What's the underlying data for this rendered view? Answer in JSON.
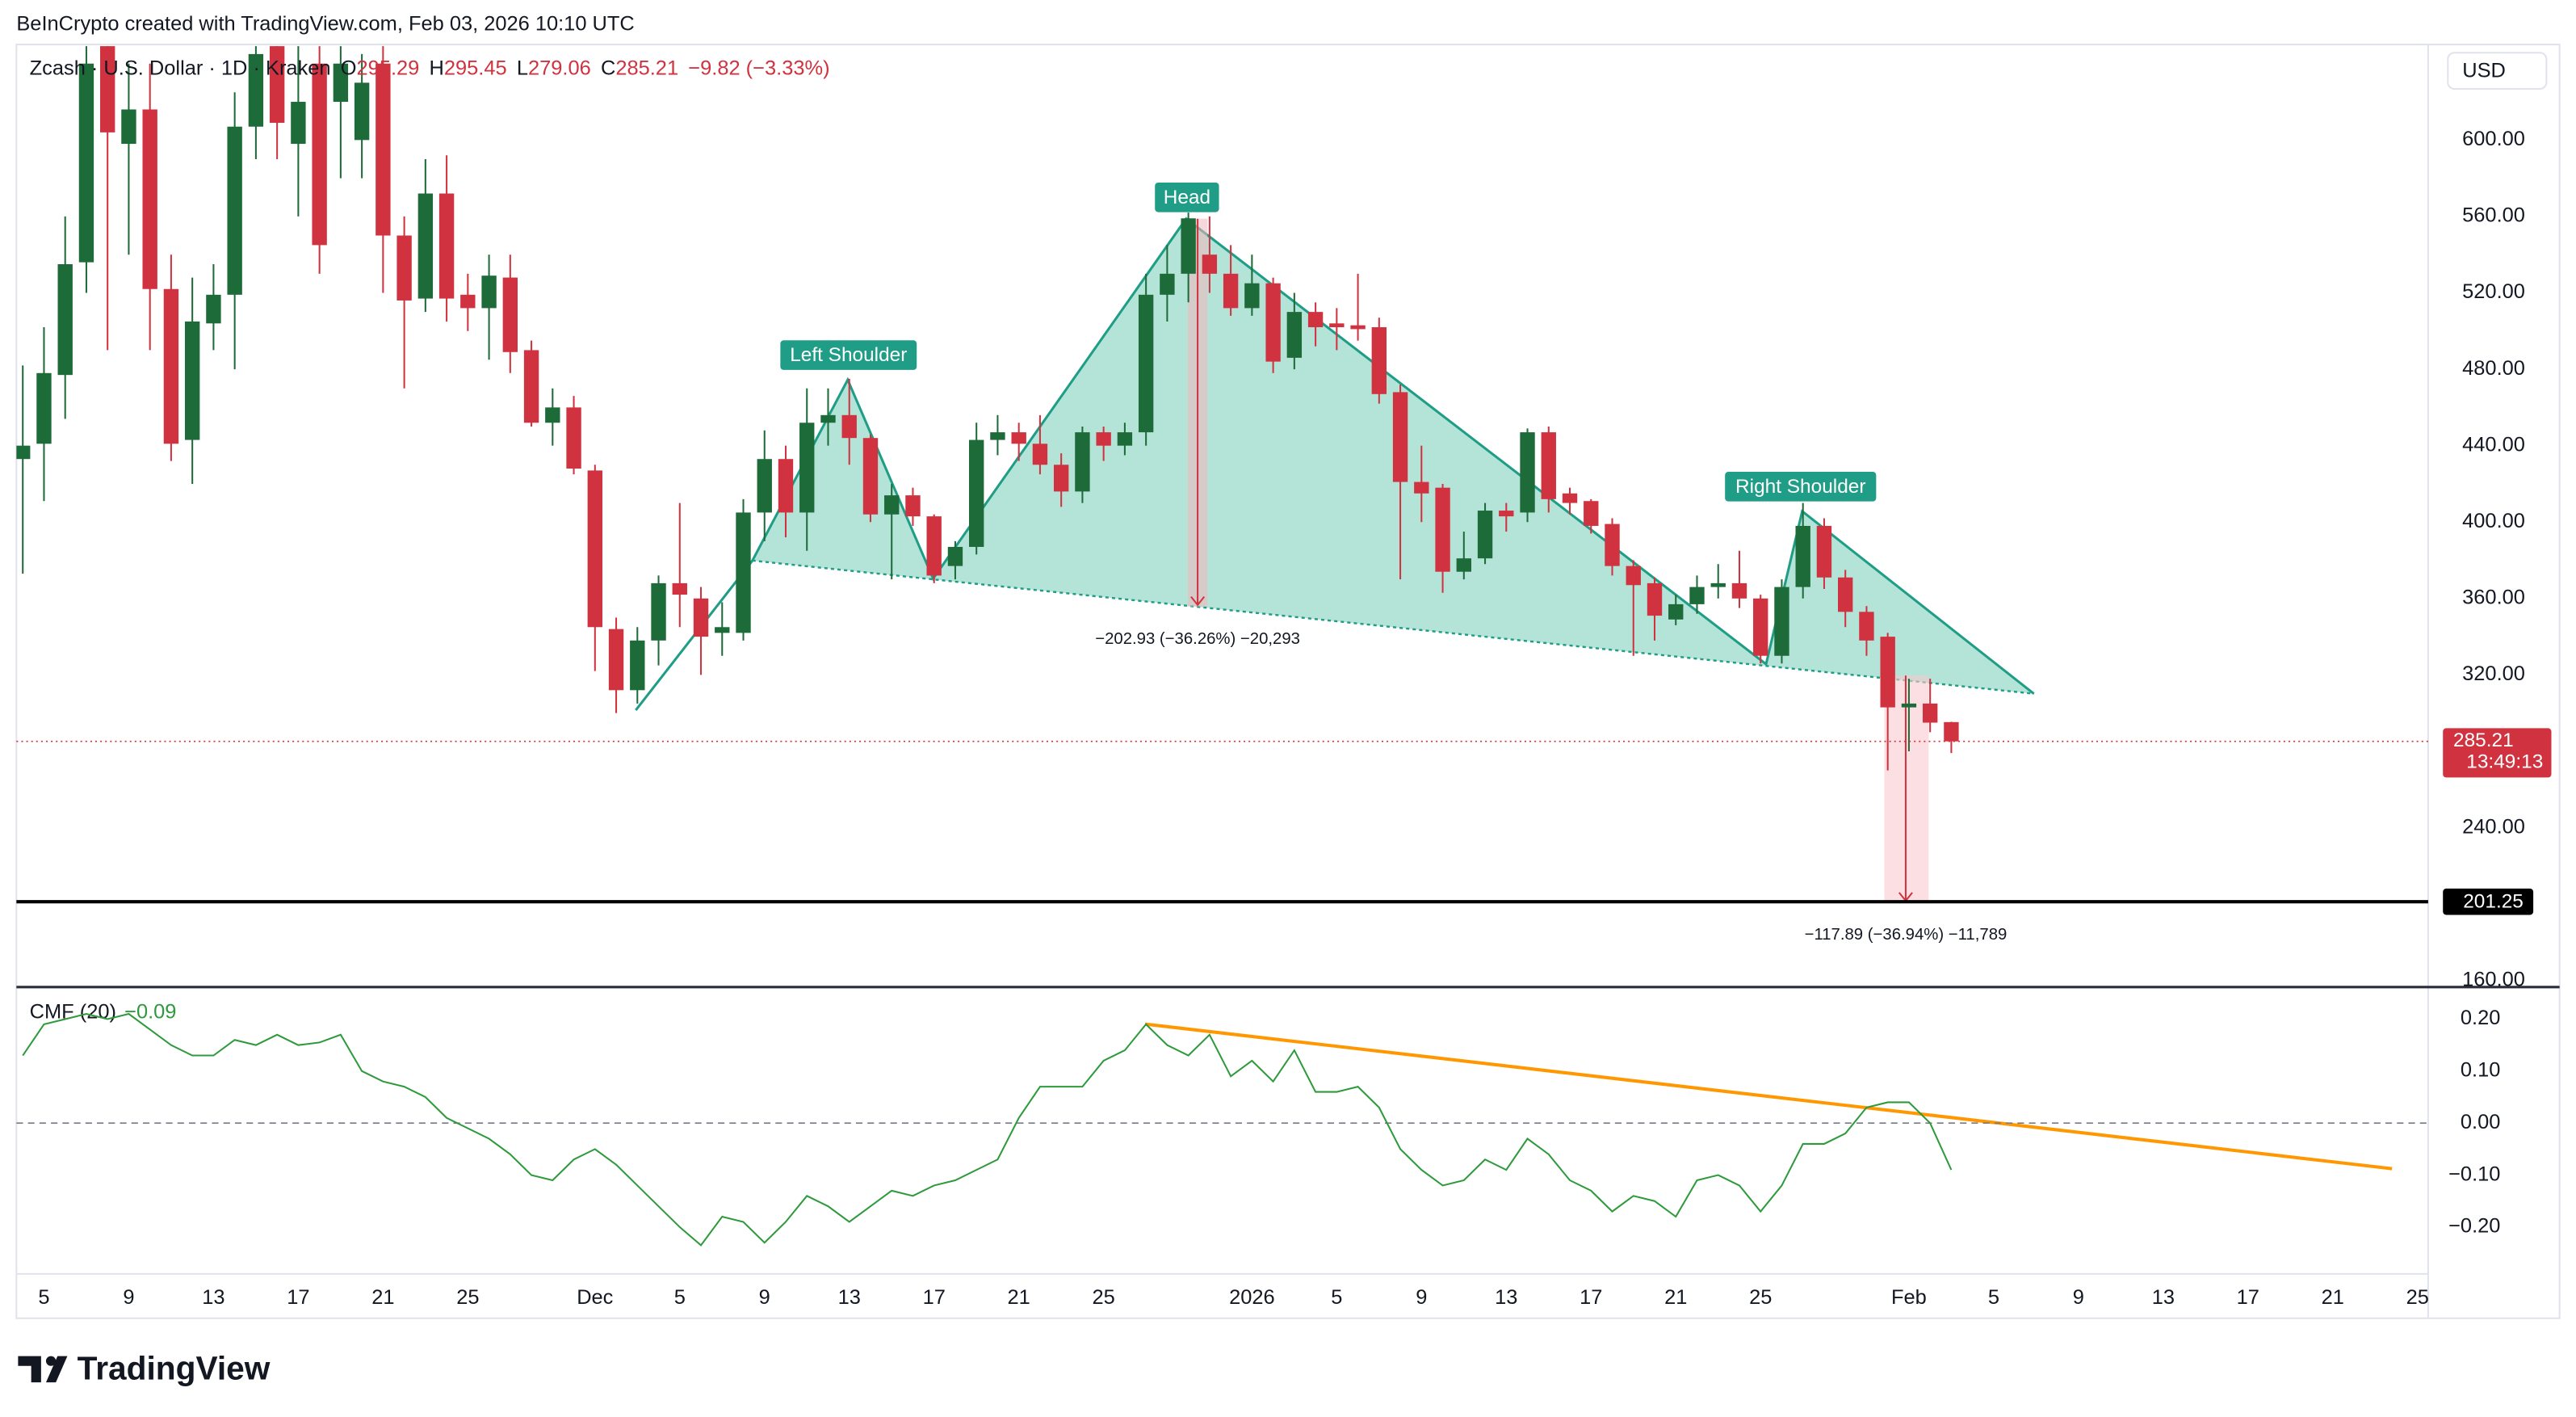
{
  "header": "BeInCrypto created with TradingView.com, Feb 03, 2026 10:10 UTC",
  "currency": "USD",
  "footer": {
    "logo": "TradingView"
  },
  "chart_data": [
    {
      "type": "candlestick",
      "legend": {
        "symbol": "Zcash · U.S. Dollar · 1D · Kraken",
        "ohlc_labels": [
          "O",
          "H",
          "L",
          "C"
        ],
        "change": "−9.82 (−3.33%)"
      },
      "annotations": {
        "left": "Left Shoulder",
        "head": "Head",
        "right": "Right Shoulder",
        "head_measure": "−202.93 (−36.26%) −20,293",
        "target_measure": "−117.89 (−36.94%) −11,789"
      },
      "up_color": "#1e6b3a",
      "down_color": "#d0323f",
      "x": [
        0,
        1,
        2,
        3,
        4,
        5,
        6,
        7,
        8,
        9,
        10,
        11,
        12,
        13,
        14,
        15,
        16,
        17,
        18,
        19,
        20,
        21,
        22,
        23,
        24,
        25,
        26,
        27,
        28,
        29,
        30,
        31,
        32,
        33,
        34,
        35,
        36,
        37,
        38,
        39,
        40,
        41,
        42,
        43,
        44,
        45,
        46,
        47,
        48,
        49,
        50,
        51,
        52,
        53,
        54,
        55,
        56,
        57,
        58,
        59,
        60,
        61,
        62,
        63,
        64,
        65,
        66,
        67,
        68,
        69,
        70,
        71,
        72,
        73,
        74,
        75,
        76,
        77,
        78,
        79,
        80,
        81,
        82,
        83,
        84,
        85,
        86,
        87,
        88,
        89,
        90,
        91
      ],
      "open": [
        433,
        441,
        477,
        536,
        650,
        598,
        616,
        522,
        443,
        504,
        519,
        607,
        650,
        598,
        640,
        620,
        600,
        640,
        550,
        517,
        572,
        519,
        512,
        528,
        490,
        452,
        460,
        427,
        344,
        312,
        338,
        368,
        360,
        342,
        342,
        405,
        433,
        405,
        452,
        456,
        444,
        404,
        414,
        403,
        377,
        387,
        443,
        447,
        441,
        430,
        416,
        447,
        440,
        447,
        519,
        530,
        540,
        530,
        512,
        525,
        486,
        510,
        504,
        503,
        502,
        468,
        421,
        418,
        374,
        381,
        406,
        405,
        447,
        415,
        411,
        399,
        377,
        368,
        349,
        357,
        366,
        368,
        360,
        330,
        366,
        398,
        371,
        353,
        340,
        303,
        305,
        295.29
      ],
      "high": [
        482,
        502,
        560,
        660,
        670,
        640,
        640,
        540,
        528,
        535,
        625,
        665,
        670,
        650,
        660,
        660,
        645,
        650,
        560,
        590,
        592,
        530,
        540,
        540,
        495,
        470,
        466,
        430,
        350,
        345,
        372,
        410,
        366,
        358,
        412,
        448,
        440,
        470,
        470,
        475,
        446,
        420,
        418,
        404,
        390,
        452,
        456,
        452,
        456,
        436,
        450,
        450,
        452,
        530,
        545,
        562,
        560,
        545,
        540,
        528,
        520,
        515,
        512,
        530,
        507,
        472,
        440,
        420,
        395,
        410,
        410,
        449,
        450,
        418,
        412,
        402,
        380,
        371,
        362,
        372,
        378,
        385,
        362,
        370,
        410,
        402,
        375,
        356,
        342,
        318,
        318,
        295.45
      ],
      "low": [
        373,
        411,
        454,
        520,
        490,
        540,
        490,
        432,
        420,
        490,
        480,
        590,
        590,
        560,
        530,
        580,
        580,
        520,
        470,
        510,
        505,
        500,
        485,
        478,
        450,
        440,
        425,
        322,
        300,
        305,
        325,
        345,
        320,
        330,
        338,
        390,
        392,
        385,
        440,
        430,
        400,
        370,
        398,
        368,
        370,
        383,
        435,
        432,
        425,
        408,
        410,
        432,
        435,
        440,
        505,
        515,
        520,
        508,
        508,
        478,
        480,
        492,
        490,
        495,
        462,
        370,
        400,
        363,
        370,
        378,
        395,
        400,
        405,
        404,
        394,
        372,
        330,
        338,
        346,
        352,
        360,
        355,
        326,
        326,
        360,
        365,
        345,
        330,
        270,
        280,
        290,
        279.06
      ],
      "close": [
        440,
        478,
        535,
        640,
        604,
        616,
        522,
        441,
        505,
        519,
        607,
        645,
        609,
        620,
        545,
        640,
        630,
        550,
        516,
        572,
        517,
        512,
        529,
        489,
        452,
        460,
        428,
        345,
        312,
        338,
        368,
        362,
        340,
        345,
        405,
        433,
        405,
        452,
        456,
        444,
        404,
        414,
        403,
        372,
        387,
        443,
        447,
        441,
        430,
        416,
        447,
        440,
        447,
        519,
        530,
        559,
        530,
        512,
        525,
        484,
        510,
        502,
        502,
        501,
        467,
        421,
        415,
        374,
        381,
        406,
        403,
        447,
        412,
        410,
        398,
        377,
        367,
        351,
        357,
        366,
        368,
        360,
        330,
        366,
        398,
        371,
        353,
        338,
        303,
        305,
        295,
        285.21
      ],
      "countdown": "13:49:13",
      "horizontal_line": 201.25,
      "xlim": [
        -0.3,
        113.5
      ],
      "ylim": [
        157,
        650
      ],
      "yticks": [
        {
          "value": 160,
          "label": "160.00"
        },
        {
          "value": 240,
          "label": "240.00"
        },
        {
          "value": 320,
          "label": "320.00"
        },
        {
          "value": 360,
          "label": "360.00"
        },
        {
          "value": 400,
          "label": "400.00"
        },
        {
          "value": 440,
          "label": "440.00"
        },
        {
          "value": 480,
          "label": "480.00"
        },
        {
          "value": 520,
          "label": "520.00"
        },
        {
          "value": 560,
          "label": "560.00"
        },
        {
          "value": 600,
          "label": "600.00"
        }
      ]
    },
    {
      "type": "line",
      "title": "CMF (20)",
      "last_label": "−0.09",
      "color": "#2e9a3c",
      "x": [
        0,
        1,
        2,
        3,
        4,
        5,
        6,
        7,
        8,
        9,
        10,
        11,
        12,
        13,
        14,
        15,
        16,
        17,
        18,
        19,
        20,
        21,
        22,
        23,
        24,
        25,
        26,
        27,
        28,
        29,
        30,
        31,
        32,
        33,
        34,
        35,
        36,
        37,
        38,
        39,
        40,
        41,
        42,
        43,
        44,
        45,
        46,
        47,
        48,
        49,
        50,
        51,
        52,
        53,
        54,
        55,
        56,
        57,
        58,
        59,
        60,
        61,
        62,
        63,
        64,
        65,
        66,
        67,
        68,
        69,
        70,
        71,
        72,
        73,
        74,
        75,
        76,
        77,
        78,
        79,
        80,
        81,
        82,
        83,
        84,
        85,
        86,
        87,
        88,
        89,
        90,
        91
      ],
      "values": [
        0.13,
        0.19,
        0.2,
        0.21,
        0.2,
        0.21,
        0.18,
        0.15,
        0.13,
        0.13,
        0.16,
        0.15,
        0.17,
        0.15,
        0.155,
        0.17,
        0.1,
        0.08,
        0.07,
        0.05,
        0.01,
        -0.01,
        -0.03,
        -0.06,
        -0.1,
        -0.11,
        -0.07,
        -0.05,
        -0.08,
        -0.12,
        -0.16,
        -0.2,
        -0.235,
        -0.18,
        -0.19,
        -0.23,
        -0.19,
        -0.14,
        -0.16,
        -0.19,
        -0.16,
        -0.13,
        -0.14,
        -0.12,
        -0.11,
        -0.09,
        -0.07,
        0.01,
        0.07,
        0.07,
        0.07,
        0.12,
        0.14,
        0.19,
        0.15,
        0.13,
        0.17,
        0.09,
        0.12,
        0.08,
        0.14,
        0.06,
        0.06,
        0.07,
        0.03,
        -0.05,
        -0.09,
        -0.12,
        -0.11,
        -0.07,
        -0.09,
        -0.03,
        -0.06,
        -0.11,
        -0.13,
        -0.17,
        -0.14,
        -0.15,
        -0.18,
        -0.11,
        -0.1,
        -0.12,
        -0.17,
        -0.12,
        -0.04,
        -0.04,
        -0.02,
        0.03,
        0.04,
        0.04,
        0.0,
        -0.09
      ],
      "xlim": [
        -0.3,
        113.5
      ],
      "ylim": [
        -0.29,
        0.26
      ],
      "yticks": [
        {
          "value": -0.2,
          "label": "−0.20"
        },
        {
          "value": -0.1,
          "label": "−0.10"
        },
        {
          "value": 0,
          "label": "0.00"
        },
        {
          "value": 0.1,
          "label": "0.10"
        },
        {
          "value": 0.2,
          "label": "0.20"
        }
      ],
      "xticks": [
        {
          "value": 1,
          "label": "5"
        },
        {
          "value": 5,
          "label": "9"
        },
        {
          "value": 9,
          "label": "13"
        },
        {
          "value": 13,
          "label": "17"
        },
        {
          "value": 17,
          "label": "21"
        },
        {
          "value": 21,
          "label": "25"
        },
        {
          "value": 27,
          "label": "Dec"
        },
        {
          "value": 31,
          "label": "5"
        },
        {
          "value": 35,
          "label": "9"
        },
        {
          "value": 39,
          "label": "13"
        },
        {
          "value": 43,
          "label": "17"
        },
        {
          "value": 47,
          "label": "21"
        },
        {
          "value": 51,
          "label": "25"
        },
        {
          "value": 58,
          "label": "2026"
        },
        {
          "value": 62,
          "label": "5"
        },
        {
          "value": 66,
          "label": "9"
        },
        {
          "value": 70,
          "label": "13"
        },
        {
          "value": 74,
          "label": "17"
        },
        {
          "value": 78,
          "label": "21"
        },
        {
          "value": 82,
          "label": "25"
        },
        {
          "value": 89,
          "label": "Feb"
        },
        {
          "value": 93,
          "label": "5"
        },
        {
          "value": 97,
          "label": "9"
        },
        {
          "value": 101,
          "label": "13"
        },
        {
          "value": 105,
          "label": "17"
        },
        {
          "value": 109,
          "label": "21"
        },
        {
          "value": 113,
          "label": "25"
        }
      ]
    }
  ]
}
